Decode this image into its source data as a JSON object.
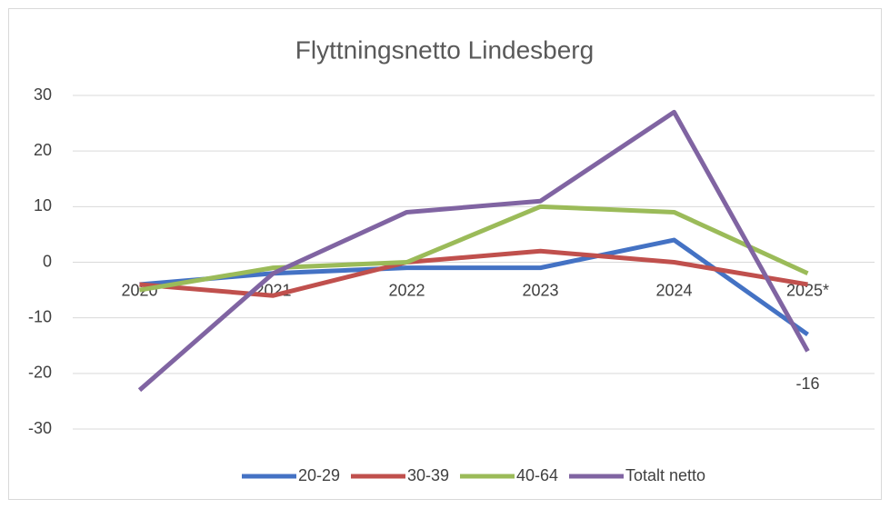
{
  "chart_data": {
    "type": "line",
    "title": "Flyttningsnetto Lindesberg",
    "categories": [
      "2020",
      "2021",
      "2022",
      "2023",
      "2024",
      "2025*"
    ],
    "series": [
      {
        "name": "20-29",
        "color": "#4472c4",
        "values": [
          -4,
          -2,
          -1,
          -1,
          4,
          -13
        ]
      },
      {
        "name": "30-39",
        "color": "#c0504d",
        "values": [
          -4,
          -6,
          0,
          2,
          0,
          -4
        ]
      },
      {
        "name": "40-64",
        "color": "#9bbb59",
        "values": [
          -5,
          -1,
          0,
          10,
          9,
          -2
        ]
      },
      {
        "name": "Totalt netto",
        "color": "#8064a2",
        "values": [
          -23,
          -2,
          9,
          11,
          27,
          -16
        ],
        "value_labels": [
          null,
          null,
          null,
          null,
          null,
          "-16"
        ]
      }
    ],
    "ylim": [
      -30,
      30
    ],
    "yticks": [
      -30,
      -20,
      -10,
      0,
      10,
      20,
      30
    ],
    "grid": true,
    "legend": "bottom"
  }
}
